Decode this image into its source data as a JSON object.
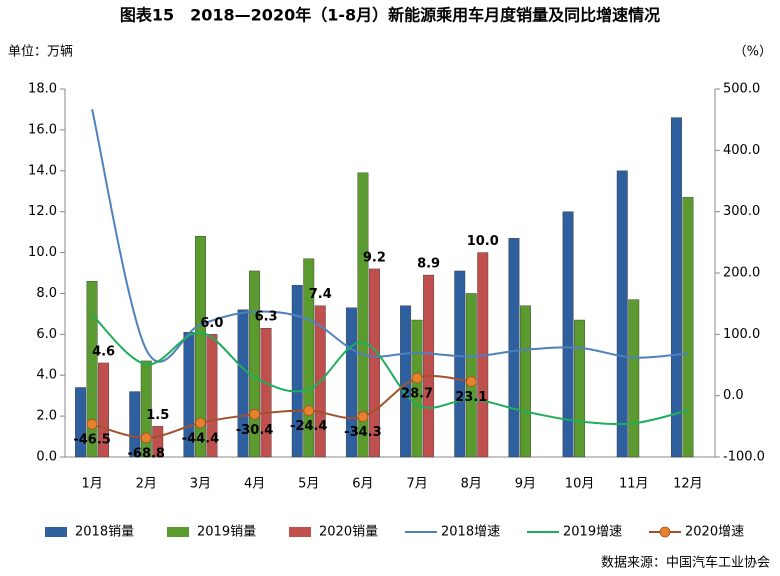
{
  "chart_data": {
    "type": "bar-line",
    "title": "图表15　2018—2020年（1-8月）新能源乘用车月度销量及同比增速情况",
    "y_label": "单位：万辆",
    "y2_label": "（%）",
    "source": "数据来源：中国汽车工业协会",
    "categories": [
      "1月",
      "2月",
      "3月",
      "4月",
      "5月",
      "6月",
      "7月",
      "8月",
      "9月",
      "10月",
      "11月",
      "12月"
    ],
    "ylim": [
      0,
      18
    ],
    "yticks": [
      {
        "value": 0,
        "label": "0.0"
      },
      {
        "value": 2,
        "label": "2.0"
      },
      {
        "value": 4,
        "label": "4.0"
      },
      {
        "value": 6,
        "label": "6.0"
      },
      {
        "value": 8,
        "label": "8.0"
      },
      {
        "value": 10,
        "label": "10.0"
      },
      {
        "value": 12,
        "label": "12.0"
      },
      {
        "value": 14,
        "label": "14.0"
      },
      {
        "value": 16,
        "label": "16.0"
      },
      {
        "value": 18,
        "label": "18.0"
      }
    ],
    "y2lim": [
      -100,
      500
    ],
    "y2ticks": [
      {
        "value": -100,
        "label": "-100.0"
      },
      {
        "value": 0,
        "label": "0.0"
      },
      {
        "value": 100,
        "label": "100.0"
      },
      {
        "value": 200,
        "label": "200.0"
      },
      {
        "value": 300,
        "label": "300.0"
      },
      {
        "value": 400,
        "label": "400.0"
      },
      {
        "value": 500,
        "label": "500.0"
      }
    ],
    "series": [
      {
        "name": "2018销量",
        "type": "bar",
        "color": "#2e5f9e",
        "values": [
          3.4,
          3.2,
          6.1,
          7.2,
          8.4,
          7.3,
          7.4,
          9.1,
          10.7,
          12.0,
          14.0,
          16.6
        ]
      },
      {
        "name": "2019销量",
        "type": "bar",
        "color": "#5a9a2e",
        "values": [
          8.6,
          4.7,
          10.8,
          9.1,
          9.7,
          13.9,
          6.7,
          8.0,
          7.4,
          6.7,
          7.7,
          12.7
        ]
      },
      {
        "name": "2020销量",
        "type": "bar",
        "color": "#c0504d",
        "values": [
          4.6,
          1.5,
          6.0,
          6.3,
          7.4,
          9.2,
          8.9,
          10.0,
          null,
          null,
          null,
          null
        ],
        "value_labels": [
          "4.6",
          "1.5",
          "6.0",
          "6.3",
          "7.4",
          "9.2",
          "8.9",
          "10.0",
          null,
          null,
          null,
          null
        ],
        "label_color": "#1f2f9f"
      },
      {
        "name": "2018增速",
        "type": "line",
        "axis": "y2",
        "color": "#4f81bd",
        "values": [
          467,
          75,
          116,
          137,
          124,
          67,
          70,
          64,
          75,
          78,
          62,
          69
        ]
      },
      {
        "name": "2019增速",
        "type": "line",
        "axis": "y2",
        "color": "#1fae5b",
        "values": [
          132,
          51,
          103,
          30,
          10,
          87,
          -15,
          -6,
          -26,
          -42,
          -45,
          -24
        ]
      },
      {
        "name": "2020增速",
        "type": "line",
        "axis": "y2",
        "color": "#a0522d",
        "marker_color": "#e8822a",
        "values": [
          -46.5,
          -68.8,
          -44.4,
          -30.4,
          -24.4,
          -34.3,
          28.7,
          23.1,
          null,
          null,
          null,
          null
        ],
        "label_color": "#000000"
      }
    ]
  }
}
